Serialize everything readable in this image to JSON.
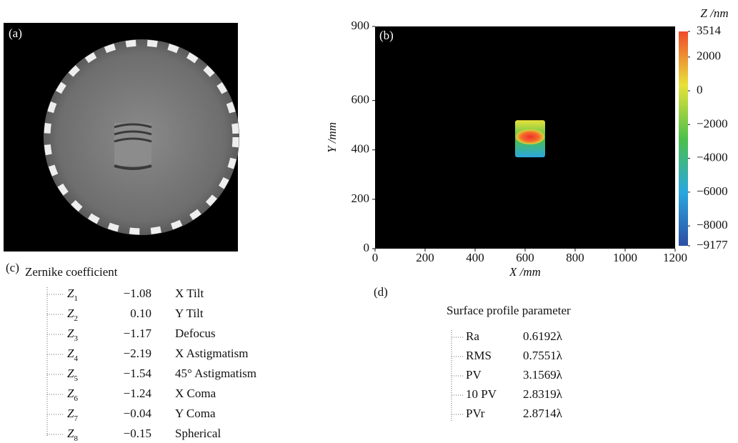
{
  "panel_a": {
    "label": "(a)"
  },
  "chart_data": {
    "type": "heatmap",
    "label": "(b)",
    "x_label": "X /mm",
    "y_label": "Y /mm",
    "xlim": [
      0,
      1200
    ],
    "xticks": [
      0,
      200,
      400,
      600,
      800,
      1000,
      1200
    ],
    "ylim": [
      0,
      900
    ],
    "yticks": [
      0,
      200,
      400,
      600,
      900
    ],
    "patch_xlim": [
      560,
      680
    ],
    "patch_ylim": [
      370,
      520
    ],
    "colorbar_label": "Z /nm",
    "zlim": [
      -9177,
      3514
    ],
    "zticks": [
      3514,
      2000,
      0,
      {
        "value": -2000,
        "label": "−2000"
      },
      {
        "value": -4000,
        "label": "−4000"
      },
      {
        "value": -6000,
        "label": "−6000"
      },
      {
        "value": -8000,
        "label": "−8000"
      },
      {
        "value": -9177,
        "label": "−9177"
      }
    ],
    "colors": [
      "#2c4ea3",
      "#2aa7e0",
      "#4cc04a",
      "#e8e23a",
      "#f04a2a"
    ]
  },
  "panel_c": {
    "label": "(c)",
    "title": "Zernike coefficient",
    "rows": [
      {
        "symbol": "Z",
        "index": "1",
        "value": "−1.08",
        "name": "X Tilt"
      },
      {
        "symbol": "Z",
        "index": "2",
        "value": "0.10",
        "name": "Y Tilt"
      },
      {
        "symbol": "Z",
        "index": "3",
        "value": "−1.17",
        "name": "Defocus"
      },
      {
        "symbol": "Z",
        "index": "4",
        "value": "−2.19",
        "name": "X Astigmatism"
      },
      {
        "symbol": "Z",
        "index": "5",
        "value": "−1.54",
        "name": "45° Astigmatism"
      },
      {
        "symbol": "Z",
        "index": "6",
        "value": "−1.24",
        "name": "X Coma"
      },
      {
        "symbol": "Z",
        "index": "7",
        "value": "−0.04",
        "name": "Y Coma"
      },
      {
        "symbol": "Z",
        "index": "8",
        "value": "−0.15",
        "name": "Spherical"
      }
    ]
  },
  "panel_d": {
    "label": "(d)",
    "title": "Surface profile parameter",
    "rows": [
      {
        "name": "Ra",
        "value": "0.6192λ"
      },
      {
        "name": "RMS",
        "value": "0.7551λ"
      },
      {
        "name": "PV",
        "value": "3.1569λ"
      },
      {
        "name": "10 PV",
        "value": "2.8319λ"
      },
      {
        "name": "PVr",
        "value": "2.8714λ"
      }
    ]
  }
}
